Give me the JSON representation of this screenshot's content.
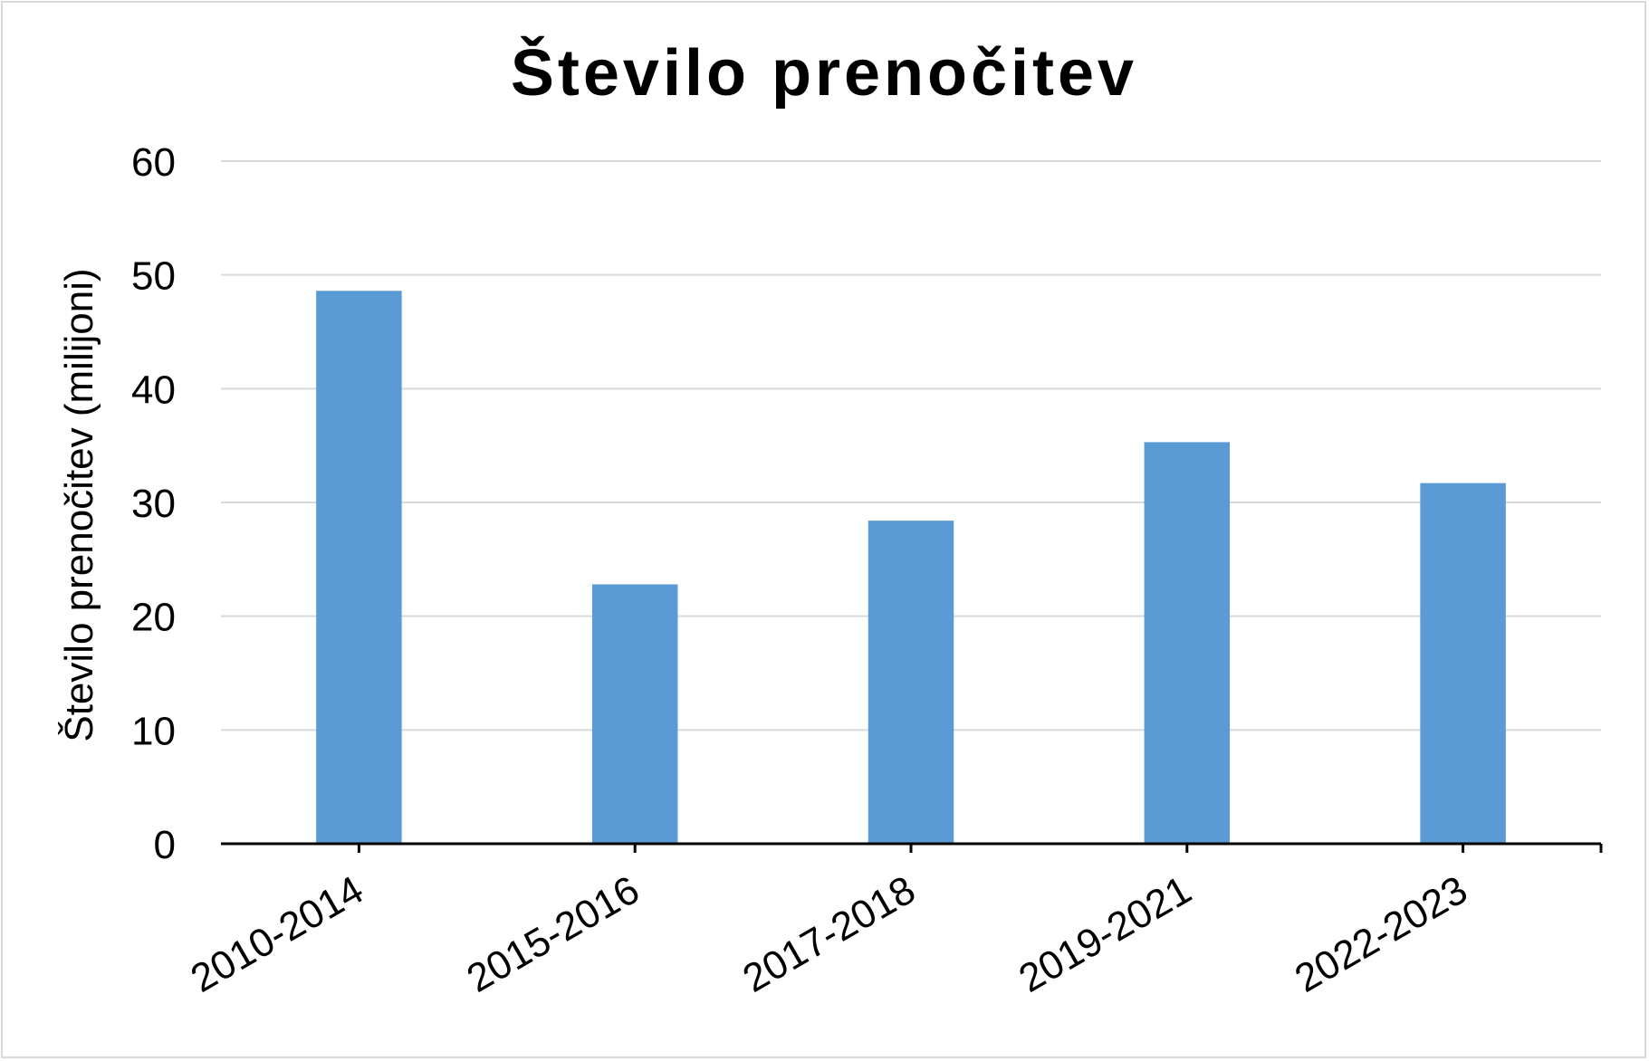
{
  "chart_data": {
    "type": "bar",
    "title": "Število prenočitev",
    "xlabel": "",
    "ylabel": "Število prenočitev (milijoni)",
    "categories": [
      "2010-2014",
      "2015-2016",
      "2017-2018",
      "2019-2021",
      "2022-2023"
    ],
    "values": [
      48.6,
      22.8,
      28.4,
      35.3,
      31.7
    ],
    "ylim": [
      0,
      60
    ],
    "yticks": [
      "0",
      "10",
      "20",
      "30",
      "40",
      "50",
      "60"
    ],
    "grid": true,
    "legend": "none",
    "colors": {
      "bar": "#5b9bd5",
      "grid": "#d9d9d9",
      "axis": "#000000",
      "text": "#000000"
    }
  }
}
